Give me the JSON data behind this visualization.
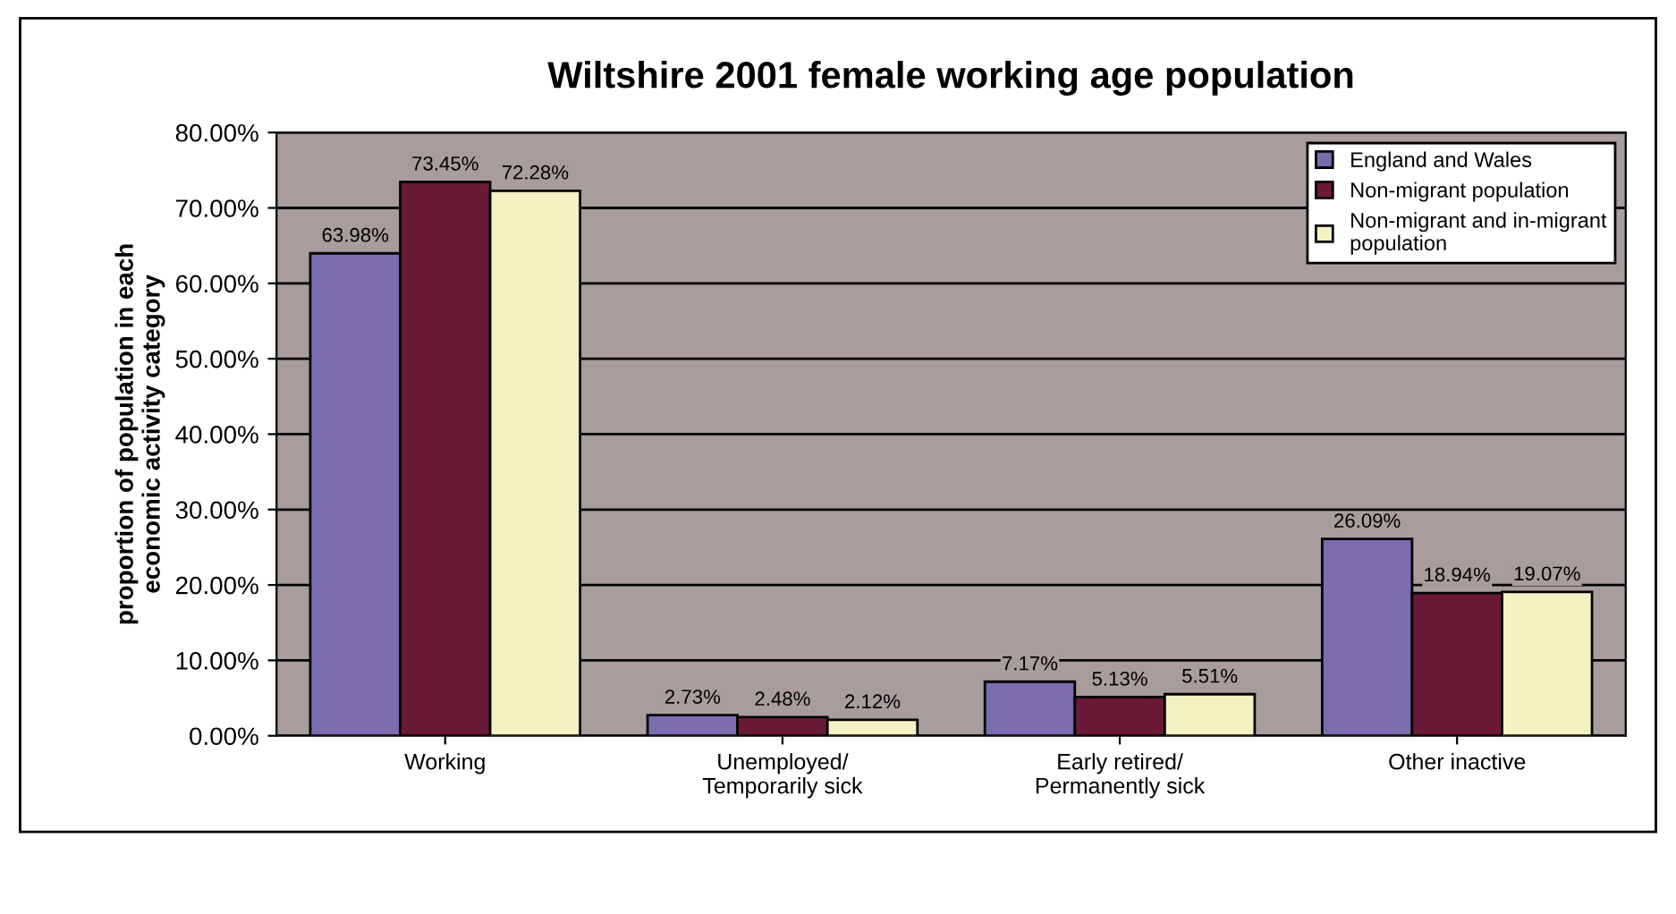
{
  "chart_data": {
    "type": "bar",
    "title": "Wiltshire 2001 female working age population",
    "ylabel": "proportion of population in each\neconomic activity category",
    "categories": [
      "Working",
      "Unemployed/\nTemporarily sick",
      "Early retired/\nPermanently sick",
      "Other inactive"
    ],
    "series": [
      {
        "name": "England and Wales",
        "color": "#7a6cae",
        "values": [
          63.98,
          2.73,
          7.17,
          26.09
        ],
        "value_labels": [
          "63.98%",
          "2.73%",
          "7.17%",
          "26.09%"
        ]
      },
      {
        "name": "Non-migrant population",
        "color": "#6a1a36",
        "values": [
          73.45,
          2.48,
          5.13,
          18.94
        ],
        "value_labels": [
          "73.45%",
          "2.48%",
          "5.13%",
          "18.94%"
        ]
      },
      {
        "name": "Non-migrant and in-migrant\npopulation",
        "color": "#f4f2c2",
        "values": [
          72.28,
          2.12,
          5.51,
          19.07
        ],
        "value_labels": [
          "72.28%",
          "2.12%",
          "5.51%",
          "19.07%"
        ]
      }
    ],
    "ylim": [
      0,
      80
    ],
    "yticks": [
      {
        "value": 0,
        "label": "0.00%"
      },
      {
        "value": 10,
        "label": "10.00%"
      },
      {
        "value": 20,
        "label": "20.00%"
      },
      {
        "value": 30,
        "label": "30.00%"
      },
      {
        "value": 40,
        "label": "40.00%"
      },
      {
        "value": 50,
        "label": "50.00%"
      },
      {
        "value": 60,
        "label": "60.00%"
      },
      {
        "value": 70,
        "label": "70.00%"
      },
      {
        "value": 80,
        "label": "80.00%"
      }
    ],
    "grid": "y",
    "legend": "top right"
  }
}
